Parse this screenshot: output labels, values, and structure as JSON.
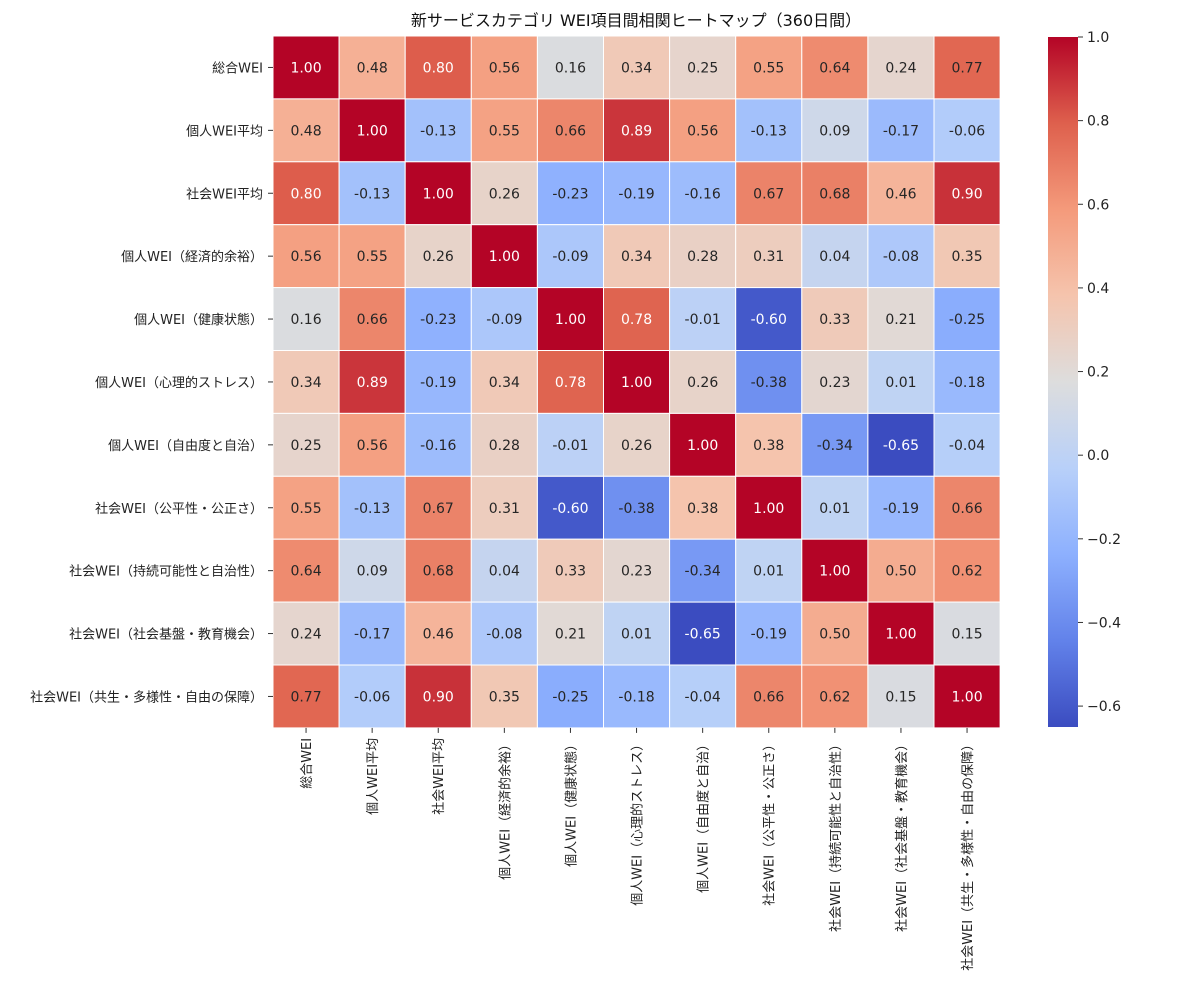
{
  "chart_data": {
    "type": "heatmap",
    "title": "新サービスカテゴリ WEI項目間相関ヒートマップ（360日間）",
    "row_labels": [
      "総合WEI",
      "個人WEI平均",
      "社会WEI平均",
      "個人WEI（経済的余裕）",
      "個人WEI（健康状態）",
      "個人WEI（心理的ストレス）",
      "個人WEI（自由度と自治）",
      "社会WEI（公平性・公正さ）",
      "社会WEI（持続可能性と自治性）",
      "社会WEI（社会基盤・教育機会）",
      "社会WEI（共生・多様性・自由の保障）"
    ],
    "col_labels": [
      "総合WEI",
      "個人WEI平均",
      "社会WEI平均",
      "個人WEI（経済的余裕）",
      "個人WEI（健康状態）",
      "個人WEI（心理的ストレス）",
      "個人WEI（自由度と自治）",
      "社会WEI（公平性・公正さ）",
      "社会WEI（持続可能性と自治性）",
      "社会WEI（社会基盤・教育機会）",
      "社会WEI（共生・多様性・自由の保障）"
    ],
    "values": [
      [
        1.0,
        0.48,
        0.8,
        0.56,
        0.16,
        0.34,
        0.25,
        0.55,
        0.64,
        0.24,
        0.77
      ],
      [
        0.48,
        1.0,
        -0.13,
        0.55,
        0.66,
        0.89,
        0.56,
        -0.13,
        0.09,
        -0.17,
        -0.06
      ],
      [
        0.8,
        -0.13,
        1.0,
        0.26,
        -0.23,
        -0.19,
        -0.16,
        0.67,
        0.68,
        0.46,
        0.9
      ],
      [
        0.56,
        0.55,
        0.26,
        1.0,
        -0.09,
        0.34,
        0.28,
        0.31,
        0.04,
        -0.08,
        0.35
      ],
      [
        0.16,
        0.66,
        -0.23,
        -0.09,
        1.0,
        0.78,
        -0.01,
        -0.6,
        0.33,
        0.21,
        -0.25
      ],
      [
        0.34,
        0.89,
        -0.19,
        0.34,
        0.78,
        1.0,
        0.26,
        -0.38,
        0.23,
        0.01,
        -0.18
      ],
      [
        0.25,
        0.56,
        -0.16,
        0.28,
        -0.01,
        0.26,
        1.0,
        0.38,
        -0.34,
        -0.65,
        -0.04
      ],
      [
        0.55,
        -0.13,
        0.67,
        0.31,
        -0.6,
        -0.38,
        0.38,
        1.0,
        0.01,
        -0.19,
        0.66
      ],
      [
        0.64,
        0.09,
        0.68,
        0.04,
        0.33,
        0.23,
        -0.34,
        0.01,
        1.0,
        0.5,
        0.62
      ],
      [
        0.24,
        -0.17,
        0.46,
        -0.08,
        0.21,
        0.01,
        -0.65,
        -0.19,
        0.5,
        1.0,
        0.15
      ],
      [
        0.77,
        -0.06,
        0.9,
        0.35,
        -0.25,
        -0.18,
        -0.04,
        0.66,
        0.62,
        0.15,
        1.0
      ]
    ],
    "colormap": "coolwarm",
    "colorbar": {
      "range": [
        -0.65,
        1.0
      ],
      "ticks": [
        1.0,
        0.8,
        0.6,
        0.4,
        0.2,
        0.0,
        -0.2,
        -0.4,
        -0.6
      ],
      "tick_labels": [
        "1.0",
        "0.8",
        "0.6",
        "0.4",
        "0.2",
        "0.0",
        "−0.2",
        "−0.4",
        "−0.6"
      ],
      "placement": "right"
    },
    "annotations": true,
    "number_format": "0.00"
  }
}
